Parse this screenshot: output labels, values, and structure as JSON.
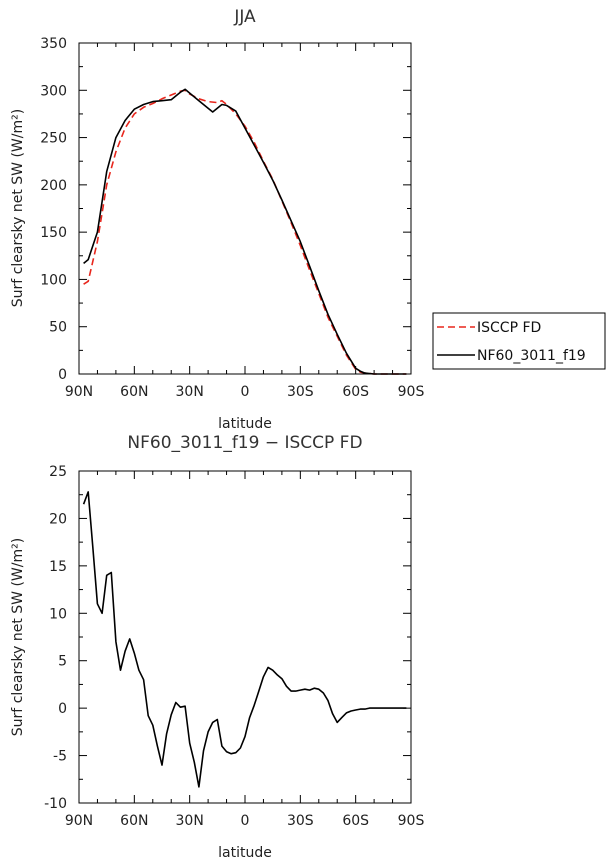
{
  "chart_data": [
    {
      "type": "line",
      "title": "JJA",
      "xlabel": "latitude",
      "ylabel": "Surf clearsky net SW (W/m²)",
      "xlim": [
        90,
        -90
      ],
      "ylim": [
        0,
        350
      ],
      "x_ticks": [
        {
          "value": 90,
          "label": "90N"
        },
        {
          "value": 60,
          "label": "60N"
        },
        {
          "value": 30,
          "label": "30N"
        },
        {
          "value": 0,
          "label": "0"
        },
        {
          "value": -30,
          "label": "30S"
        },
        {
          "value": -60,
          "label": "60S"
        },
        {
          "value": -90,
          "label": "90S"
        }
      ],
      "y_ticks": [
        0,
        50,
        100,
        150,
        200,
        250,
        300,
        350
      ],
      "legend": "right",
      "series": [
        {
          "name": "ISCCP FD",
          "color": "#e8261c",
          "dash": "dashed",
          "x": [
            87.5,
            85,
            80,
            75,
            70,
            65,
            60,
            55,
            50,
            45,
            40,
            35,
            32.5,
            30,
            25,
            20,
            15,
            12.5,
            10,
            5,
            0,
            -5,
            -10,
            -15,
            -20,
            -25,
            -30,
            -35,
            -40,
            -45,
            -50,
            -55,
            -60,
            -62.5,
            -65,
            -70,
            -75,
            -80,
            -85,
            -87.5
          ],
          "y": [
            95,
            98,
            140,
            200,
            235,
            260,
            275,
            282,
            286,
            291,
            295,
            299,
            300,
            296,
            291,
            288,
            287,
            289,
            285,
            275,
            262,
            245,
            225,
            206,
            183,
            160,
            136,
            110,
            85,
            60,
            40,
            20,
            5,
            2,
            1,
            0,
            0,
            0,
            0,
            0
          ]
        },
        {
          "name": "NF60_3011_f19",
          "color": "#000000",
          "dash": "solid",
          "x": [
            87.5,
            85,
            80,
            75,
            70,
            65,
            60,
            55,
            50,
            45,
            40,
            35,
            32.5,
            30,
            25,
            20,
            17.5,
            15,
            12.5,
            10,
            5,
            0,
            -5,
            -10,
            -15,
            -20,
            -25,
            -30,
            -35,
            -40,
            -45,
            -50,
            -55,
            -60,
            -62.5,
            -65,
            -70,
            -75,
            -80,
            -85,
            -87.5
          ],
          "y": [
            117,
            121,
            150,
            214,
            250,
            268,
            280,
            285,
            288,
            289,
            290,
            298,
            301,
            297,
            289,
            281,
            277,
            281,
            285,
            284,
            278,
            260,
            242,
            224,
            205,
            184,
            162,
            140,
            114,
            88,
            63,
            42,
            22,
            6,
            3,
            1,
            0,
            0,
            0,
            0,
            0
          ]
        }
      ]
    },
    {
      "type": "line",
      "title": "NF60_3011_f19 − ISCCP FD",
      "xlabel": "latitude",
      "ylabel": "Surf clearsky net SW (W/m²)",
      "xlim": [
        90,
        -90
      ],
      "ylim": [
        -10,
        25
      ],
      "x_ticks": [
        {
          "value": 90,
          "label": "90N"
        },
        {
          "value": 60,
          "label": "60N"
        },
        {
          "value": 30,
          "label": "30N"
        },
        {
          "value": 0,
          "label": "0"
        },
        {
          "value": -30,
          "label": "30S"
        },
        {
          "value": -60,
          "label": "60S"
        },
        {
          "value": -90,
          "label": "90S"
        }
      ],
      "y_ticks": [
        -10,
        -5,
        0,
        5,
        10,
        15,
        20,
        25
      ],
      "series": [
        {
          "color": "#000000",
          "dash": "solid",
          "x": [
            87.5,
            85,
            82.5,
            80,
            77.5,
            75,
            72.5,
            70,
            67.5,
            65,
            62.5,
            60,
            57.5,
            55,
            52.5,
            50,
            47.5,
            45,
            42.5,
            40,
            37.5,
            35,
            32.5,
            30,
            27.5,
            25,
            22.5,
            20,
            17.5,
            15,
            12.5,
            10,
            7.5,
            5,
            2.5,
            0,
            -2.5,
            -5,
            -7.5,
            -10,
            -12.5,
            -15,
            -17.5,
            -20,
            -22.5,
            -25,
            -27.5,
            -30,
            -32.5,
            -35,
            -37.5,
            -40,
            -42.5,
            -45,
            -47.5,
            -50,
            -52.5,
            -55,
            -57.5,
            -60,
            -62.5,
            -65,
            -67.5,
            -70,
            -72.5,
            -75,
            -77.5,
            -80,
            -82.5,
            -85,
            -87.5
          ],
          "y": [
            21.5,
            22.8,
            17,
            11,
            10,
            14,
            14.3,
            7,
            4,
            6,
            7.3,
            5.8,
            4,
            3,
            -0.8,
            -1.8,
            -4,
            -6,
            -2.7,
            -0.7,
            0.6,
            0.1,
            0.2,
            -3.7,
            -5.7,
            -8.3,
            -4.5,
            -2.5,
            -1.5,
            -1.2,
            -4,
            -4.6,
            -4.8,
            -4.7,
            -4.2,
            -3,
            -1,
            0.3,
            1.8,
            3.3,
            4.3,
            4,
            3.5,
            3.1,
            2.3,
            1.8,
            1.8,
            1.9,
            2,
            1.9,
            2.1,
            2,
            1.6,
            0.8,
            -0.6,
            -1.5,
            -1,
            -0.5,
            -0.3,
            -0.2,
            -0.1,
            -0.1,
            0,
            0,
            0,
            0,
            0,
            0,
            0,
            0,
            0
          ]
        }
      ]
    }
  ]
}
